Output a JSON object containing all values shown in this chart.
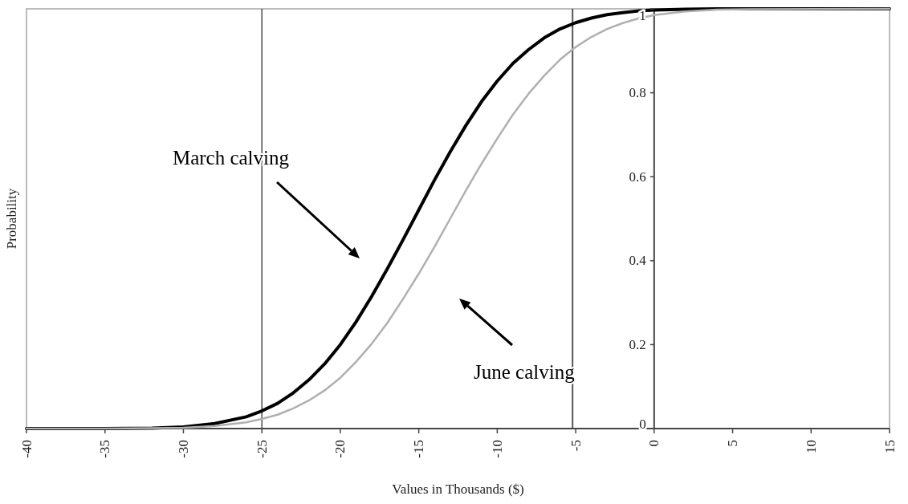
{
  "chart_data": {
    "type": "line",
    "xlabel": "Values in Thousands ($)",
    "ylabel": "Probability",
    "x": [
      -40,
      -35,
      -32,
      -30,
      -28,
      -26,
      -25,
      -24,
      -23,
      -22,
      -21,
      -20,
      -19,
      -18,
      -17,
      -16,
      -15,
      -14,
      -13,
      -12,
      -11,
      -10,
      -9,
      -8,
      -7,
      -6,
      -5,
      -4,
      -3,
      -2,
      -1,
      0,
      2,
      4,
      6,
      15
    ],
    "series": [
      {
        "color": "#000000",
        "values": [
          0,
          0,
          0.001,
          0.004,
          0.012,
          0.028,
          0.042,
          0.06,
          0.085,
          0.116,
          0.154,
          0.2,
          0.254,
          0.315,
          0.381,
          0.45,
          0.521,
          0.592,
          0.659,
          0.722,
          0.779,
          0.828,
          0.87,
          0.903,
          0.931,
          0.952,
          0.967,
          0.978,
          0.986,
          0.991,
          0.995,
          0.997,
          0.999,
          1,
          1,
          1
        ]
      },
      {
        "color": "#b0b0b0",
        "values": [
          0,
          0,
          0.001,
          0.002,
          0.006,
          0.015,
          0.023,
          0.033,
          0.048,
          0.067,
          0.091,
          0.121,
          0.159,
          0.202,
          0.252,
          0.309,
          0.369,
          0.433,
          0.5,
          0.567,
          0.631,
          0.691,
          0.748,
          0.798,
          0.841,
          0.879,
          0.909,
          0.933,
          0.952,
          0.966,
          0.977,
          0.985,
          0.994,
          0.998,
          0.999,
          1
        ]
      }
    ],
    "xlim": [
      -40,
      15
    ],
    "xticks": [
      -40,
      -35,
      -30,
      -25,
      -20,
      -15,
      -10,
      -5,
      0,
      5,
      10,
      15
    ],
    "ylim": [
      0,
      1
    ],
    "yticks": [
      0,
      0.2,
      0.4,
      0.6,
      0.8,
      1
    ],
    "ref_lines": [
      {
        "axis": "x",
        "value": -25,
        "color": "#222222"
      },
      {
        "axis": "x",
        "value": -5.2,
        "color": "#555555"
      }
    ],
    "annotations": [
      "March calving",
      "June calving"
    ],
    "grid": false,
    "marker": "none",
    "line_style": "solid"
  }
}
